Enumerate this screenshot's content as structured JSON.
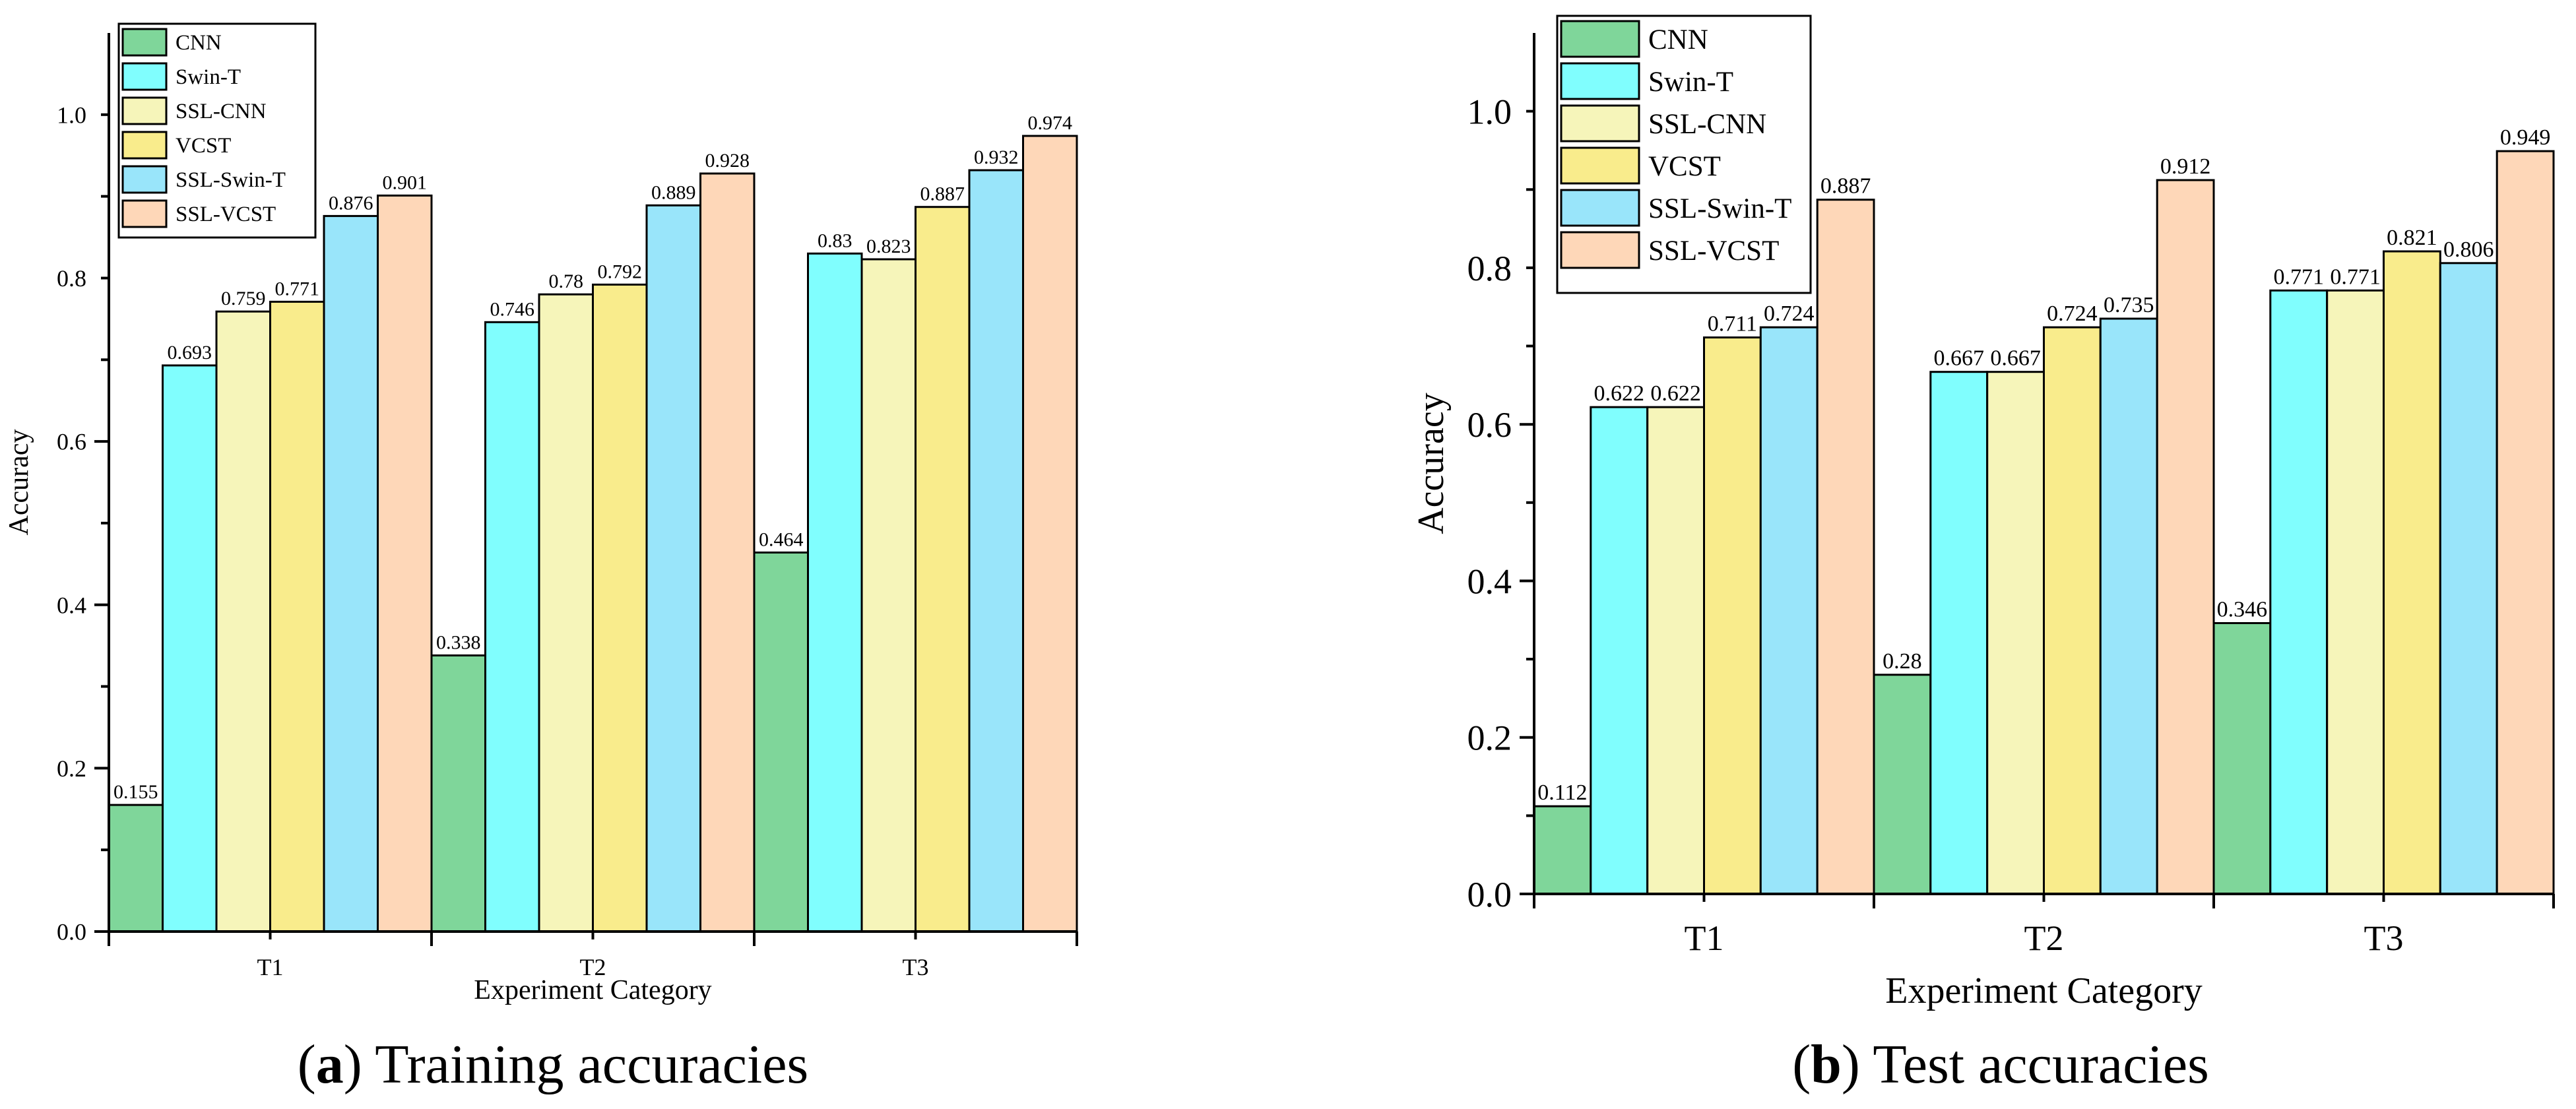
{
  "colors": {
    "CNN": "#7fd69a",
    "Swin-T": "#80fefe",
    "SSL-CNN": "#f6f5ba",
    "VCST": "#f9ec8c",
    "SSL-Swin-T": "#99e5fa",
    "SSL-VCST": "#fed7b8"
  },
  "captions": [
    {
      "letter": "a",
      "open": "(",
      "close": ")",
      "text": " Training accuracies"
    },
    {
      "letter": "b",
      "open": "(",
      "close": ")",
      "text": " Test accuracies"
    }
  ],
  "chart_data": [
    {
      "type": "bar",
      "categories": [
        "T1",
        "T2",
        "T3"
      ],
      "series": [
        {
          "name": "CNN",
          "values": [
            0.155,
            0.338,
            0.464
          ],
          "labels": [
            "0.155",
            "0.338",
            "0.464"
          ]
        },
        {
          "name": "Swin-T",
          "values": [
            0.693,
            0.746,
            0.83
          ],
          "labels": [
            "0.693",
            "0.746",
            "0.83"
          ]
        },
        {
          "name": "SSL-CNN",
          "values": [
            0.759,
            0.78,
            0.823
          ],
          "labels": [
            "0.759",
            "0.78",
            "0.823"
          ]
        },
        {
          "name": "VCST",
          "values": [
            0.771,
            0.792,
            0.887
          ],
          "labels": [
            "0.771",
            "0.792",
            "0.887"
          ]
        },
        {
          "name": "SSL-Swin-T",
          "values": [
            0.876,
            0.889,
            0.932
          ],
          "labels": [
            "0.876",
            "0.889",
            "0.932"
          ]
        },
        {
          "name": "SSL-VCST",
          "values": [
            0.901,
            0.928,
            0.974
          ],
          "labels": [
            "0.901",
            "0.928",
            "0.974"
          ]
        }
      ],
      "xlabel": "Experiment Category",
      "ylabel": "Accuracy",
      "ylim": [
        0,
        1.1
      ],
      "yticks": [
        "0.0",
        "0.2",
        "0.4",
        "0.6",
        "0.8",
        "1.0"
      ],
      "legend": "top-left",
      "grid": false
    },
    {
      "type": "bar",
      "categories": [
        "T1",
        "T2",
        "T3"
      ],
      "series": [
        {
          "name": "CNN",
          "values": [
            0.112,
            0.28,
            0.346
          ],
          "labels": [
            "0.112",
            "0.28",
            "0.346"
          ]
        },
        {
          "name": "Swin-T",
          "values": [
            0.622,
            0.667,
            0.771
          ],
          "labels": [
            "0.622",
            "0.667",
            "0.771"
          ]
        },
        {
          "name": "SSL-CNN",
          "values": [
            0.622,
            0.667,
            0.771
          ],
          "labels": [
            "0.622",
            "0.667",
            "0.771"
          ]
        },
        {
          "name": "VCST",
          "values": [
            0.711,
            0.724,
            0.821
          ],
          "labels": [
            "0.711",
            "0.724",
            "0.821"
          ]
        },
        {
          "name": "SSL-Swin-T",
          "values": [
            0.724,
            0.735,
            0.806
          ],
          "labels": [
            "0.724",
            "0.735",
            "0.806"
          ]
        },
        {
          "name": "SSL-VCST",
          "values": [
            0.887,
            0.912,
            0.949
          ],
          "labels": [
            "0.887",
            "0.912",
            "0.949"
          ]
        }
      ],
      "xlabel": "Experiment Category",
      "ylabel": "Accuracy",
      "ylim": [
        0,
        1.1
      ],
      "yticks": [
        "0.0",
        "0.2",
        "0.4",
        "0.6",
        "0.8",
        "1.0"
      ],
      "legend": "top-left",
      "grid": false
    }
  ]
}
